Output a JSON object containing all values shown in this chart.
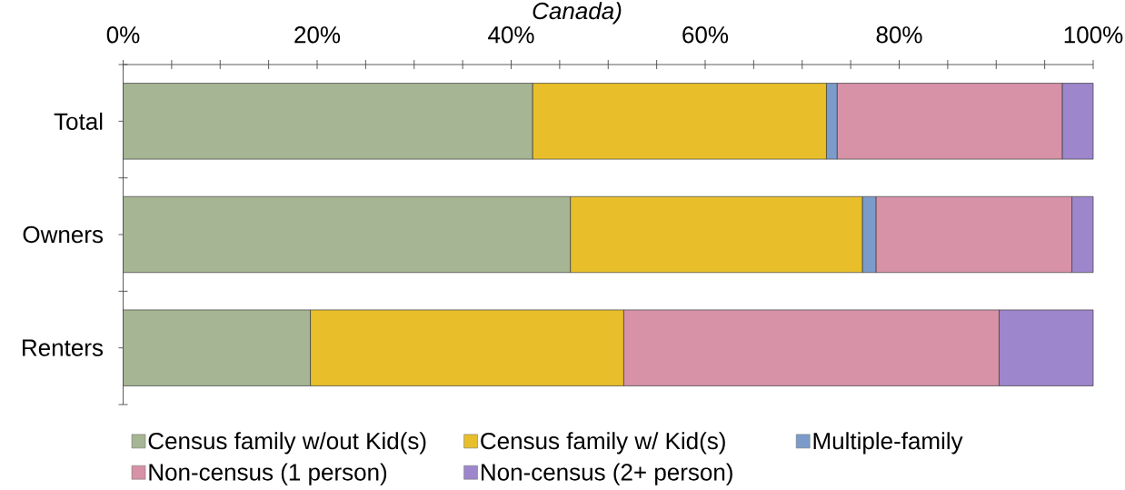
{
  "chart_data": {
    "type": "bar",
    "orientation": "horizontal",
    "stacked": true,
    "title": "Canada)",
    "categories": [
      "Total",
      "Owners",
      "Renters"
    ],
    "series": [
      {
        "name": "Census family w/out Kid(s)",
        "color": "#a6b593",
        "values": [
          42.2,
          46.1,
          19.3
        ]
      },
      {
        "name": "Census family w/ Kid(s)",
        "color": "#e8bf2a",
        "values": [
          30.3,
          30.1,
          32.3
        ]
      },
      {
        "name": "Multiple-family",
        "color": "#7b9ccb",
        "values": [
          1.1,
          1.4,
          0
        ]
      },
      {
        "name": "Non-census (1 person)",
        "color": "#d792a8",
        "values": [
          23.2,
          20.2,
          38.7
        ]
      },
      {
        "name": "Non-census (2+ person)",
        "color": "#9d86cc",
        "values": [
          3.2,
          2.2,
          9.7
        ]
      }
    ],
    "xlim": [
      0,
      100
    ],
    "xticks": [
      {
        "value": 0,
        "label": "0%"
      },
      {
        "value": 5,
        "label": null
      },
      {
        "value": 10,
        "label": null
      },
      {
        "value": 15,
        "label": null
      },
      {
        "value": 20,
        "label": "20%"
      },
      {
        "value": 25,
        "label": null
      },
      {
        "value": 30,
        "label": null
      },
      {
        "value": 35,
        "label": null
      },
      {
        "value": 40,
        "label": "40%"
      },
      {
        "value": 45,
        "label": null
      },
      {
        "value": 50,
        "label": null
      },
      {
        "value": 55,
        "label": null
      },
      {
        "value": 60,
        "label": "60%"
      },
      {
        "value": 65,
        "label": null
      },
      {
        "value": 70,
        "label": null
      },
      {
        "value": 75,
        "label": null
      },
      {
        "value": 80,
        "label": "80%"
      },
      {
        "value": 85,
        "label": null
      },
      {
        "value": 90,
        "label": null
      },
      {
        "value": 95,
        "label": null
      },
      {
        "value": 100,
        "label": "100%"
      }
    ],
    "legend": "bottom"
  }
}
